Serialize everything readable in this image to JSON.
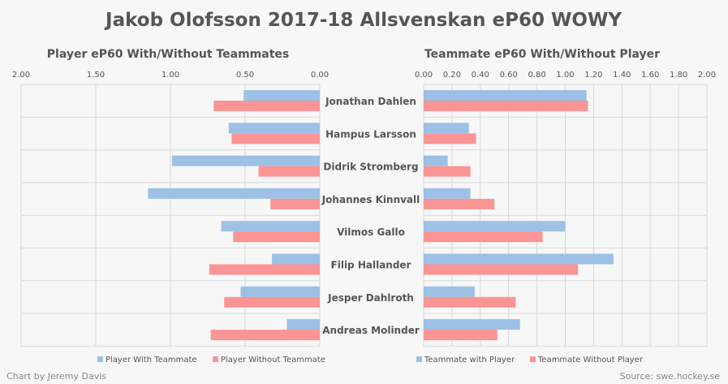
{
  "title": "Jakob Olofsson 2017-18 Allsvenskan eP60 WOWY",
  "credit": "Chart by Jeremy Davis",
  "source": "Source: swe.hockey.se",
  "colors": {
    "with": "#9dc0e5",
    "without": "#fb9494"
  },
  "chart_data": [
    {
      "type": "bar",
      "orientation": "horizontal-reversed",
      "title": "Player eP60 With/Without Teammates",
      "xlim": [
        0,
        2
      ],
      "ticks": [
        "2.00",
        "1.50",
        "1.00",
        "0.50",
        "0.00"
      ],
      "tick_values": [
        2,
        1.5,
        1,
        0.5,
        0
      ],
      "categories": [
        "Jonathan Dahlen",
        "Hampus Larsson",
        "Didrik Stromberg",
        "Johannes Kinnvall",
        "Vilmos Gallo",
        "Filip Hallander",
        "Jesper Dahlroth",
        "Andreas Molinder"
      ],
      "legend_position": "bottom",
      "series": [
        {
          "name": "Player With Teammate",
          "values": [
            0.51,
            0.61,
            0.99,
            1.15,
            0.66,
            0.32,
            0.53,
            0.22
          ]
        },
        {
          "name": "Player Without Teammate",
          "values": [
            0.71,
            0.59,
            0.41,
            0.33,
            0.58,
            0.74,
            0.64,
            0.73
          ]
        }
      ]
    },
    {
      "type": "bar",
      "orientation": "horizontal",
      "title": "Teammate eP60 With/Without Player",
      "xlim": [
        0,
        2
      ],
      "ticks": [
        "0.00",
        "0.20",
        "0.40",
        "0.60",
        "0.80",
        "1.00",
        "1.20",
        "1.40",
        "1.60",
        "1.80",
        "2.00"
      ],
      "tick_values": [
        0,
        0.2,
        0.4,
        0.6,
        0.8,
        1,
        1.2,
        1.4,
        1.6,
        1.8,
        2
      ],
      "categories": [
        "Jonathan Dahlen",
        "Hampus Larsson",
        "Didrik Stromberg",
        "Johannes Kinnvall",
        "Vilmos Gallo",
        "Filip Hallander",
        "Jesper Dahlroth",
        "Andreas Molinder"
      ],
      "legend_position": "bottom",
      "series": [
        {
          "name": "Teammate with Player",
          "values": [
            1.15,
            0.32,
            0.17,
            0.33,
            1.0,
            1.34,
            0.36,
            0.68
          ]
        },
        {
          "name": "Teammate Without Player",
          "values": [
            1.16,
            0.37,
            0.33,
            0.5,
            0.84,
            1.09,
            0.65,
            0.52
          ]
        }
      ]
    }
  ]
}
